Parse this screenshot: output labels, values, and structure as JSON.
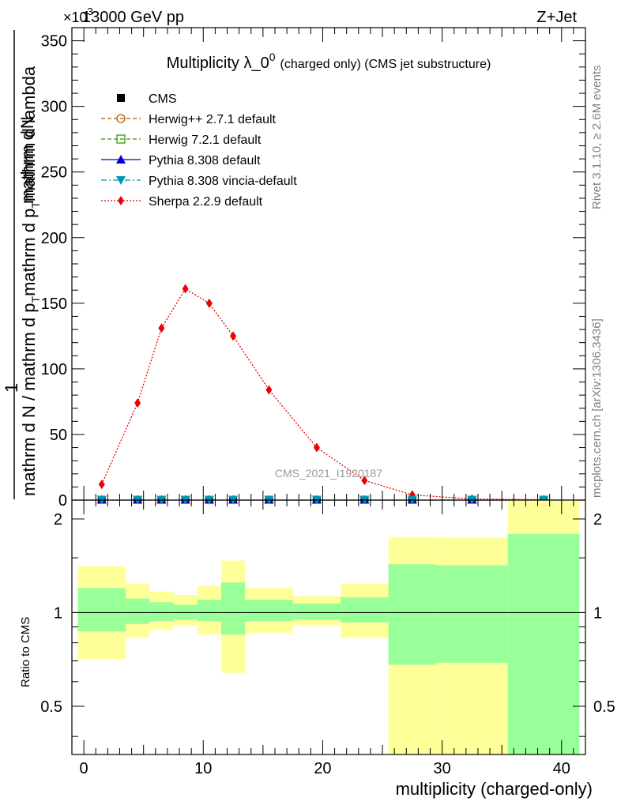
{
  "header": {
    "energy": "13000 GeV pp",
    "process": "Z+Jet",
    "exponent": "×10",
    "exponent_power": "3"
  },
  "side_labels": {
    "rivet": "Rivet 3.1.10, ≥ 2.6M events",
    "mcplots": "mcplots.cern.ch [arXiv:1306.3436]"
  },
  "watermark": "CMS_2021_I1920187",
  "chart_data": [
    {
      "type": "line",
      "title_main": "Multiplicity λ_0",
      "title_power": "0",
      "title_suffix": "(charged only) (CMS jet substructure)",
      "ylabel_top": "1",
      "ylabel_lines": [
        "mathrm d N / mathrm d p",
        "mathrm d p",
        "mathrm d N",
        "mathrm d lambda"
      ],
      "ylabel_full": "mathrm d N / mathrm d p_T mathrm d p_T mathrm d lambda",
      "xlim": [
        -1,
        42
      ],
      "ylim": [
        0,
        360
      ],
      "yticks": [
        0,
        50,
        100,
        150,
        200,
        250,
        300,
        350
      ],
      "xticks": [
        0,
        10,
        20,
        30,
        40
      ],
      "legend_position": "top-left",
      "legend": [
        {
          "name": "CMS",
          "color": "#000000",
          "marker": "square",
          "style": "none"
        },
        {
          "name": "Herwig++ 2.7.1 default",
          "color": "#b35900",
          "marker": "open-circle",
          "style": "dashed"
        },
        {
          "name": "Herwig 7.2.1 default",
          "color": "#339900",
          "marker": "open-square",
          "style": "dashed"
        },
        {
          "name": "Pythia 8.308 default",
          "color": "#0000cc",
          "marker": "triangle-up",
          "style": "solid"
        },
        {
          "name": "Pythia 8.308 vincia-default",
          "color": "#0099b3",
          "marker": "triangle-down",
          "style": "dashdot"
        },
        {
          "name": "Sherpa 2.2.9 default",
          "color": "#ee0000",
          "marker": "diamond",
          "style": "dotted"
        }
      ],
      "x": [
        1.5,
        4.5,
        6.5,
        8.5,
        10.5,
        12.5,
        15.5,
        19.5,
        23.5,
        27.5,
        32.5,
        38.5
      ],
      "series": [
        {
          "name": "Sherpa 2.2.9 default",
          "values": [
            12,
            74,
            131,
            161,
            150,
            125,
            84,
            40,
            15,
            4,
            0.8,
            0.3
          ]
        },
        {
          "name": "Pythia 8.308 vincia-default",
          "values": [
            0.3,
            0.3,
            0.3,
            0.3,
            0.3,
            0.3,
            0.3,
            0.3,
            0.3,
            0.3,
            0.3,
            0.3
          ]
        }
      ]
    },
    {
      "type": "area",
      "ylabel": "Ratio to CMS",
      "xlabel": "multiplicity (charged-only)",
      "xlim": [
        -1,
        42
      ],
      "ylim": [
        0.35,
        2.3
      ],
      "yscale": "log",
      "yticks": [
        0.5,
        1,
        2
      ],
      "xticks": [
        0,
        10,
        20,
        30,
        40
      ],
      "reference_line": 1,
      "bands": [
        {
          "x0": -0.5,
          "x1": 3.5,
          "stat": [
            0.87,
            1.2
          ],
          "total": [
            0.71,
            1.41
          ]
        },
        {
          "x0": 3.5,
          "x1": 5.5,
          "stat": [
            0.92,
            1.11
          ],
          "total": [
            0.83,
            1.24
          ]
        },
        {
          "x0": 5.5,
          "x1": 7.5,
          "stat": [
            0.94,
            1.08
          ],
          "total": [
            0.88,
            1.17
          ]
        },
        {
          "x0": 7.5,
          "x1": 9.5,
          "stat": [
            0.95,
            1.06
          ],
          "total": [
            0.91,
            1.14
          ]
        },
        {
          "x0": 9.5,
          "x1": 11.5,
          "stat": [
            0.94,
            1.1
          ],
          "total": [
            0.85,
            1.22
          ]
        },
        {
          "x0": 11.5,
          "x1": 13.5,
          "stat": [
            0.85,
            1.25
          ],
          "total": [
            0.64,
            1.47
          ]
        },
        {
          "x0": 13.5,
          "x1": 17.5,
          "stat": [
            0.94,
            1.1
          ],
          "total": [
            0.86,
            1.2
          ]
        },
        {
          "x0": 17.5,
          "x1": 21.5,
          "stat": [
            0.95,
            1.07
          ],
          "total": [
            0.91,
            1.13
          ]
        },
        {
          "x0": 21.5,
          "x1": 25.5,
          "stat": [
            0.93,
            1.12
          ],
          "total": [
            0.83,
            1.24
          ]
        },
        {
          "x0": 25.5,
          "x1": 29.5,
          "stat": [
            0.68,
            1.43
          ],
          "total": [
            0.35,
            1.75
          ]
        },
        {
          "x0": 29.5,
          "x1": 35.5,
          "stat": [
            0.69,
            1.42
          ],
          "total": [
            0.35,
            1.74
          ]
        },
        {
          "x0": 35.5,
          "x1": 41.5,
          "stat": [
            0.35,
            1.79
          ],
          "total": [
            0.35,
            2.3
          ]
        }
      ],
      "stat_color": "#99ff99",
      "total_color": "#ffff99"
    }
  ]
}
